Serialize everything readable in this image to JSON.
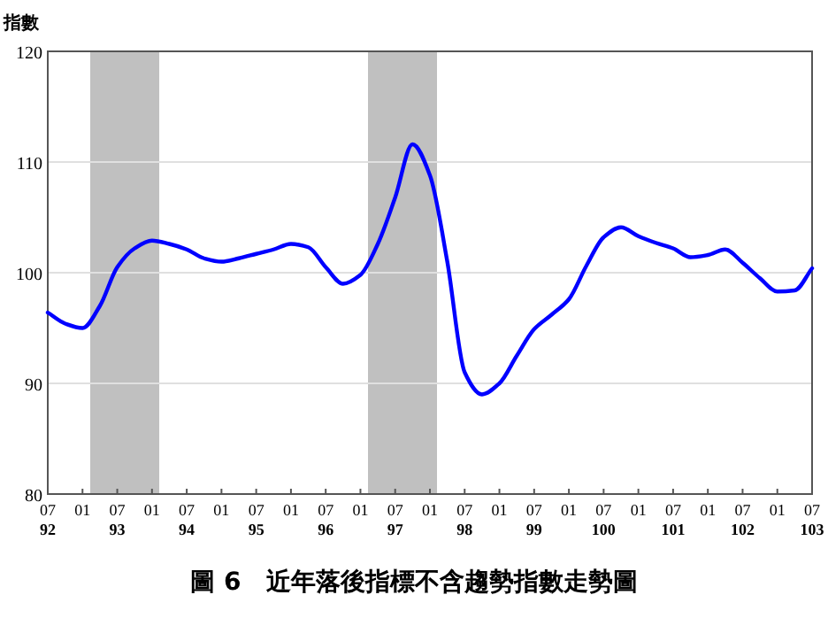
{
  "chart_data": {
    "type": "line",
    "title": "圖 6　近年落後指標不含趨勢指數走勢圖",
    "ylabel": "指數",
    "categories": [
      "07\n92",
      null,
      "01",
      null,
      "07\n93",
      null,
      "01",
      null,
      "07\n94",
      null,
      "01",
      null,
      "07\n95",
      null,
      "01",
      null,
      "07\n96",
      null,
      "01",
      null,
      "07\n97",
      null,
      "01",
      null,
      "07\n98",
      null,
      "01",
      null,
      "07\n99",
      null,
      "01",
      null,
      "07\n100",
      null,
      "01",
      null,
      "07\n101",
      null,
      "01",
      null,
      "07\n102",
      null,
      "01",
      null,
      "07\n103"
    ],
    "series": [
      {
        "color": "#0000ff",
        "values": [
          96.4,
          95.4,
          95.0,
          97.0,
          100.5,
          102.2,
          102.9,
          102.6,
          102.1,
          101.3,
          101.0,
          101.3,
          101.7,
          102.1,
          102.6,
          102.3,
          100.5,
          99.0,
          99.8,
          102.6,
          106.8,
          111.6,
          108.8,
          101.0,
          91.0,
          89.0,
          90.0,
          92.5,
          94.9,
          96.2,
          97.6,
          100.6,
          103.2,
          104.1,
          103.3,
          102.7,
          102.2,
          101.4,
          101.6,
          102.1,
          100.9,
          99.5,
          98.3,
          98.4,
          100.4
        ]
      }
    ],
    "ylim": [
      80,
      120
    ],
    "yticks": [
      80,
      90,
      100,
      110,
      120
    ],
    "grid": "y",
    "marker": "none",
    "line_style": "solid"
  }
}
